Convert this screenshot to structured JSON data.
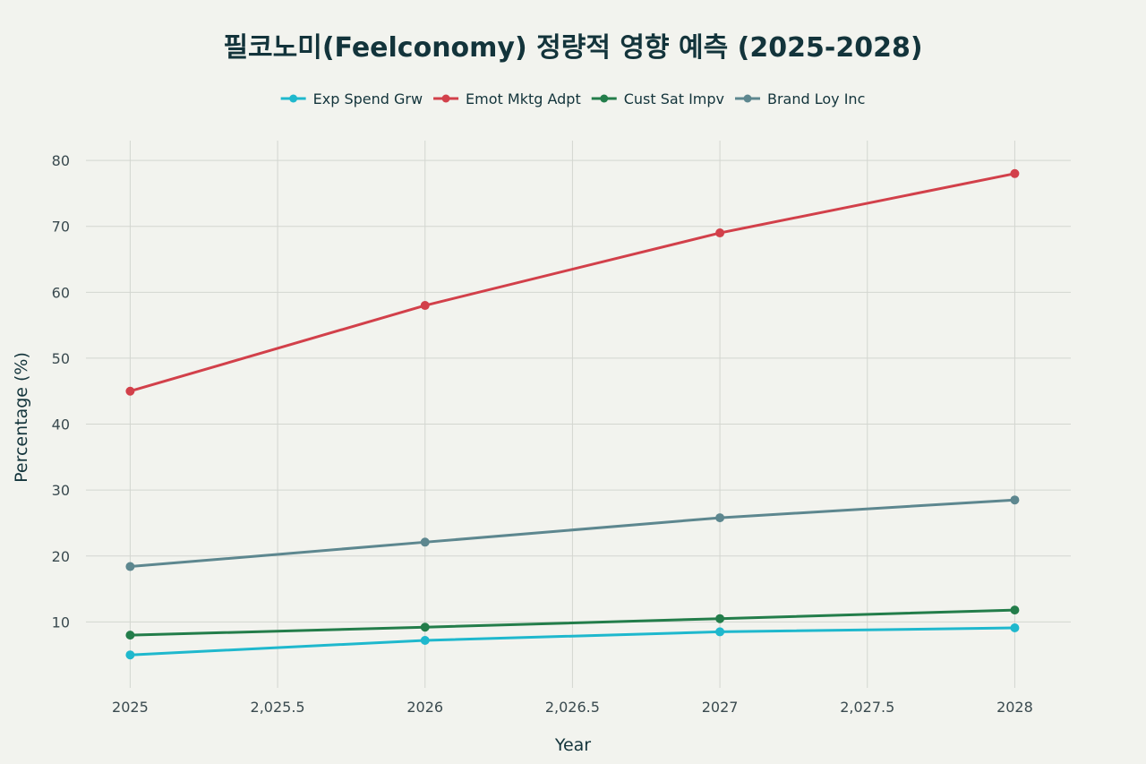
{
  "chart_data": {
    "type": "line",
    "title": "필코노미(Feelconomy) 정량적 영향 예측 (2025-2028)",
    "xlabel": "Year",
    "ylabel": "Percentage (%)",
    "x": [
      2025,
      2026,
      2027,
      2028
    ],
    "xlim": [
      2024.85,
      2028.19
    ],
    "ylim": [
      0,
      83
    ],
    "x_ticks": [
      2025,
      2025.5,
      2026,
      2026.5,
      2027,
      2027.5,
      2028
    ],
    "x_tick_labels": [
      "2025",
      "2,025.5",
      "2026",
      "2,026.5",
      "2027",
      "2,027.5",
      "2028"
    ],
    "y_ticks": [
      10,
      20,
      30,
      40,
      50,
      60,
      70,
      80
    ],
    "y_tick_labels": [
      "10",
      "20",
      "30",
      "40",
      "50",
      "60",
      "70",
      "80"
    ],
    "grid": true,
    "legend_position": "top-center",
    "series": [
      {
        "name": "Exp Spend Grw",
        "color": "#1fb8cd",
        "values": [
          5.0,
          7.2,
          8.5,
          9.1
        ]
      },
      {
        "name": "Emot Mktg Adpt",
        "color": "#d2404a",
        "values": [
          45,
          58,
          69,
          78
        ]
      },
      {
        "name": "Cust Sat Impv",
        "color": "#237d4a",
        "values": [
          8.0,
          9.2,
          10.5,
          11.8
        ]
      },
      {
        "name": "Brand Loy Inc",
        "color": "#5d878f",
        "values": [
          18.4,
          22.1,
          25.8,
          28.5
        ]
      }
    ]
  }
}
